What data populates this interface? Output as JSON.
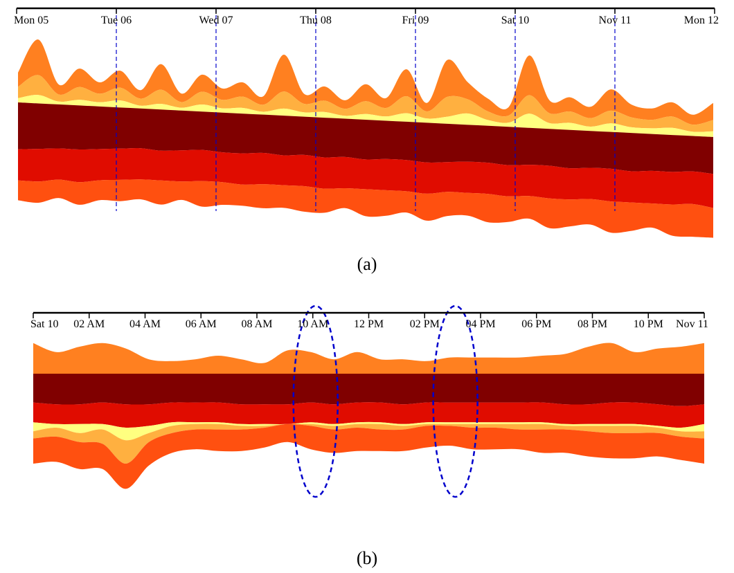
{
  "chart_data": [
    {
      "type": "area",
      "subtype": "streamgraph",
      "caption": "(a)",
      "x_ticks": [
        "Mon 05",
        "Tue 06",
        "Wed 07",
        "Thu 08",
        "Fri 09",
        "Sat 10",
        "Nov 11",
        "Mon 12"
      ],
      "day_markers": [
        "Tue 06",
        "Wed 07",
        "Thu 08",
        "Fri 09",
        "Sat 10",
        "Nov 11"
      ],
      "layer_order_top_to_bottom": [
        "orange",
        "light-orange",
        "pale-yellow",
        "dark-red",
        "red",
        "orange-red"
      ],
      "colors": {
        "pale-yellow": "#ffff80",
        "light-orange": "#ffb040",
        "orange": "#ff8020",
        "dark-red": "#800000",
        "red": "#e00c00",
        "orange-red": "#ff5010",
        "marker": "#0000cc"
      },
      "series": [
        {
          "color": "dark-red",
          "values": [
            33,
            32,
            31,
            31,
            30,
            29,
            28,
            29,
            28,
            27,
            28,
            28,
            27,
            28,
            27,
            28,
            27,
            28,
            27,
            27,
            28,
            27,
            26,
            26,
            27,
            26,
            26,
            27,
            26,
            26,
            27,
            26,
            26,
            25,
            26
          ]
        },
        {
          "color": "red",
          "values": [
            22,
            23,
            22,
            23,
            22,
            22,
            22,
            21,
            22,
            22,
            21,
            22,
            22,
            21,
            22,
            22,
            22,
            21,
            22,
            22,
            22,
            21,
            22,
            22,
            22,
            22,
            23,
            22,
            22,
            23,
            22,
            23,
            23,
            23,
            24
          ]
        },
        {
          "color": "orange-red",
          "values": [
            14,
            15,
            13,
            16,
            14,
            15,
            14,
            17,
            13,
            18,
            16,
            15,
            17,
            16,
            18,
            17,
            14,
            19,
            18,
            15,
            19,
            17,
            16,
            20,
            18,
            16,
            21,
            19,
            18,
            22,
            20,
            17,
            22,
            23,
            21
          ]
        },
        {
          "color": "pale-yellow",
          "values": [
            3,
            6,
            2,
            4,
            3,
            5,
            2,
            4,
            2,
            5,
            3,
            4,
            2,
            5,
            3,
            4,
            2,
            4,
            3,
            6,
            3,
            5,
            8,
            4,
            3,
            10,
            4,
            5,
            3,
            6,
            4,
            4,
            5,
            3,
            4
          ]
        },
        {
          "color": "light-orange",
          "values": [
            8,
            14,
            5,
            9,
            6,
            9,
            5,
            10,
            4,
            9,
            6,
            8,
            5,
            12,
            6,
            8,
            5,
            9,
            6,
            12,
            5,
            14,
            10,
            6,
            5,
            13,
            7,
            8,
            6,
            9,
            7,
            6,
            8,
            5,
            8
          ]
        },
        {
          "color": "orange",
          "values": [
            10,
            25,
            7,
            13,
            8,
            12,
            6,
            18,
            6,
            12,
            8,
            10,
            6,
            26,
            7,
            10,
            6,
            12,
            7,
            19,
            6,
            26,
            12,
            9,
            6,
            28,
            9,
            10,
            8,
            15,
            9,
            8,
            10,
            7,
            12
          ]
        }
      ]
    },
    {
      "type": "area",
      "subtype": "streamgraph",
      "caption": "(b)",
      "x_ticks": [
        "Sat 10",
        "02 AM",
        "04 AM",
        "06 AM",
        "08 AM",
        "10 AM",
        "12 PM",
        "02 PM",
        "04 PM",
        "06 PM",
        "08 PM",
        "10 PM",
        "Nov 11"
      ],
      "highlighted_hours": [
        10,
        15
      ],
      "layer_order_top_to_bottom": [
        "orange",
        "dark-red",
        "red",
        "pale-yellow",
        "light-orange",
        "orange-red"
      ],
      "colors": {
        "pale-yellow": "#ffff80",
        "light-orange": "#ffb040",
        "orange": "#ff8020",
        "dark-red": "#800000",
        "red": "#e00c00",
        "orange-red": "#ff5010",
        "marker": "#0000cc"
      },
      "series": [
        {
          "color": "orange",
          "values": [
            17,
            12,
            15,
            17,
            14,
            8,
            7,
            8,
            10,
            8,
            6,
            13,
            12,
            8,
            12,
            8,
            8,
            7,
            9,
            9,
            9,
            9,
            10,
            11,
            15,
            17,
            12,
            14,
            15,
            17
          ]
        },
        {
          "color": "dark-red",
          "values": [
            16,
            17,
            17,
            16,
            17,
            17,
            16,
            16,
            16,
            17,
            17,
            17,
            16,
            17,
            16,
            16,
            17,
            16,
            16,
            16,
            16,
            16,
            16,
            17,
            17,
            16,
            16,
            17,
            18,
            17
          ]
        },
        {
          "color": "red",
          "values": [
            11,
            11,
            11,
            12,
            13,
            12,
            11,
            11,
            11,
            11,
            11,
            11,
            11,
            11,
            11,
            11,
            11,
            11,
            11,
            11,
            11,
            11,
            11,
            11,
            11,
            12,
            12,
            12,
            12,
            11
          ]
        },
        {
          "color": "pale-yellow",
          "values": [
            5,
            2,
            5,
            3,
            7,
            4,
            2,
            1,
            1,
            1,
            1,
            0,
            1,
            1,
            1,
            1,
            1,
            1,
            1,
            1,
            1,
            1,
            1,
            1,
            1,
            1,
            1,
            1,
            2,
            4
          ]
        },
        {
          "color": "light-orange",
          "values": [
            4,
            5,
            5,
            8,
            13,
            5,
            4,
            3,
            3,
            2,
            1,
            0,
            1,
            2,
            2,
            3,
            2,
            1,
            1,
            2,
            2,
            3,
            3,
            2,
            3,
            4,
            4,
            3,
            3,
            4
          ]
        },
        {
          "color": "orange-red",
          "values": [
            14,
            14,
            15,
            14,
            14,
            13,
            11,
            11,
            12,
            12,
            11,
            10,
            13,
            13,
            13,
            12,
            12,
            12,
            11,
            12,
            12,
            11,
            13,
            13,
            14,
            14,
            14,
            13,
            13,
            14
          ]
        }
      ]
    }
  ]
}
